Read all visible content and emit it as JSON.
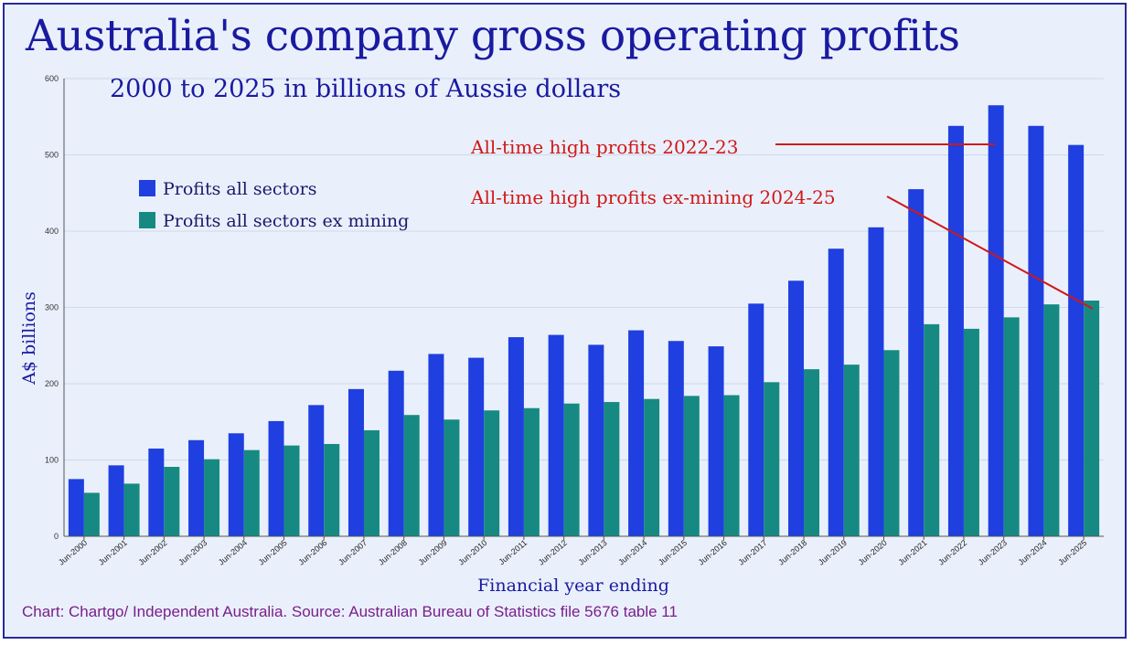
{
  "colors": {
    "background": "#e9f0fb",
    "title": "#1a1aa0",
    "series_all": "#1f3fe0",
    "series_ex_mining": "#168a82",
    "annotation": "#d01818",
    "source": "#7a1f8a"
  },
  "chart_data": {
    "type": "bar",
    "title": "Australia's company gross operating profits",
    "subtitle": "2000 to 2025 in billions of Aussie dollars",
    "xlabel": "Financial year ending",
    "ylabel": "A$ billions",
    "ylim": [
      0,
      600
    ],
    "yticks": [
      "0",
      "100",
      "200",
      "300",
      "400",
      "500",
      "600"
    ],
    "grid": true,
    "legend_position": "upper-left",
    "categories": [
      "Jun-2000",
      "Jun-2001",
      "Jun-2002",
      "Jun-2003",
      "Jun-2004",
      "Jun-2005",
      "Jun-2006",
      "Jun-2007",
      "Jun-2008",
      "Jun-2009",
      "Jun-2010",
      "Jun-2011",
      "Jun-2012",
      "Jun-2013",
      "Jun-2014",
      "Jun-2015",
      "Jun-2016",
      "Jun-2017",
      "Jun-2018",
      "Jun-2019",
      "Jun-2020",
      "Jun-2021",
      "Jun-2022",
      "Jun-2023",
      "Jun-2024",
      "Jun-2025"
    ],
    "series": [
      {
        "name": "Profits all sectors",
        "color": "#1f3fe0",
        "values": [
          75,
          93,
          115,
          126,
          135,
          151,
          172,
          193,
          217,
          239,
          234,
          261,
          264,
          251,
          270,
          256,
          249,
          305,
          335,
          377,
          405,
          455,
          538,
          565,
          538,
          513
        ]
      },
      {
        "name": "Profits all sectors ex mining",
        "color": "#168a82",
        "values": [
          57,
          69,
          91,
          101,
          113,
          119,
          121,
          139,
          159,
          153,
          165,
          168,
          174,
          176,
          180,
          184,
          185,
          202,
          219,
          225,
          244,
          278,
          272,
          287,
          304,
          309
        ]
      }
    ],
    "annotations": [
      {
        "text": "All-time high profits 2022-23",
        "target": "Jun-2023",
        "series": "Profits all sectors"
      },
      {
        "text": "All-time high profits ex-mining 2024-25",
        "target": "Jun-2025",
        "series": "Profits all sectors ex mining"
      }
    ]
  },
  "source": "Chart: Chartgo/ Independent Australia. Source: Australian Bureau of Statistics file 5676 table 11"
}
